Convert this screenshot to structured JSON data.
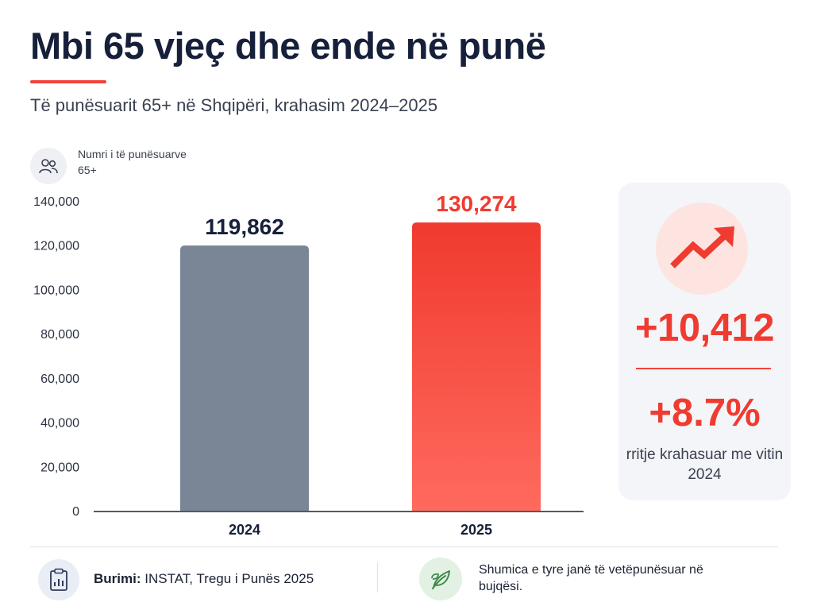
{
  "header": {
    "title": "Mbi 65 vjeç dhe ende në punë",
    "subtitle": "Të punësuarit 65+ në Shqipëri, krahasim 2024–2025"
  },
  "axis_legend": {
    "icon": "people-icon",
    "label": "Numri i të punësuarve 65+"
  },
  "chart_data": {
    "type": "bar",
    "categories": [
      "2024",
      "2025"
    ],
    "values": [
      119862,
      130274
    ],
    "value_labels": [
      "119,862",
      "130,274"
    ],
    "ylabel": "Numri i të punësuarve 65+",
    "ylim": [
      0,
      140000
    ],
    "yticks": [
      0,
      20000,
      40000,
      60000,
      80000,
      100000,
      120000,
      140000
    ],
    "ytick_labels": [
      "0",
      "20,000",
      "40,000",
      "60,000",
      "80,000",
      "100,000",
      "120,000",
      "140,000"
    ],
    "grid": false,
    "colors": [
      "#7a8595",
      "#f0443a"
    ],
    "label_colors": [
      "#16203a",
      "#ef3b30"
    ]
  },
  "summary_card": {
    "icon": "trend-up-arrow-icon",
    "absolute_change": "+10,412",
    "percent_change": "+8.7%",
    "description": "rritje krahasuar me vitin 2024",
    "accent_color": "#ef3b30"
  },
  "footer": {
    "source_icon": "clipboard-chart-icon",
    "source_label": "Burimi:",
    "source_value": "INSTAT, Tregu i Punës 2025",
    "note_icon": "leaf-icon",
    "note": "Shumica e tyre janë të vetëpunësuar në bujqësi."
  }
}
